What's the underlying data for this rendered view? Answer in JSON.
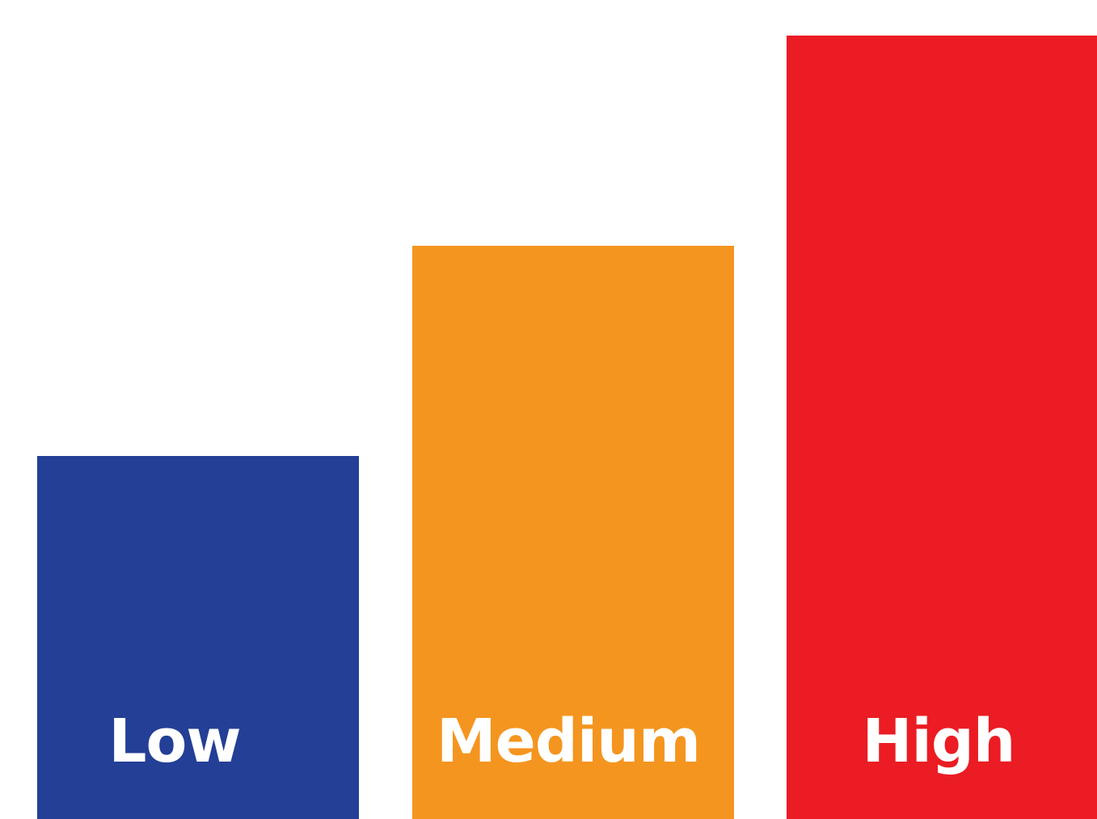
{
  "chart_data": {
    "type": "bar",
    "categories": [
      "Low",
      "Medium",
      "High"
    ],
    "values": [
      1,
      2,
      3
    ],
    "colors": [
      "#233f96",
      "#f4951f",
      "#eb1c23"
    ],
    "title": "",
    "xlabel": "",
    "ylabel": "",
    "ylim": [
      0,
      3
    ],
    "grid": false,
    "legend": "none",
    "value_labels_shown": false
  }
}
